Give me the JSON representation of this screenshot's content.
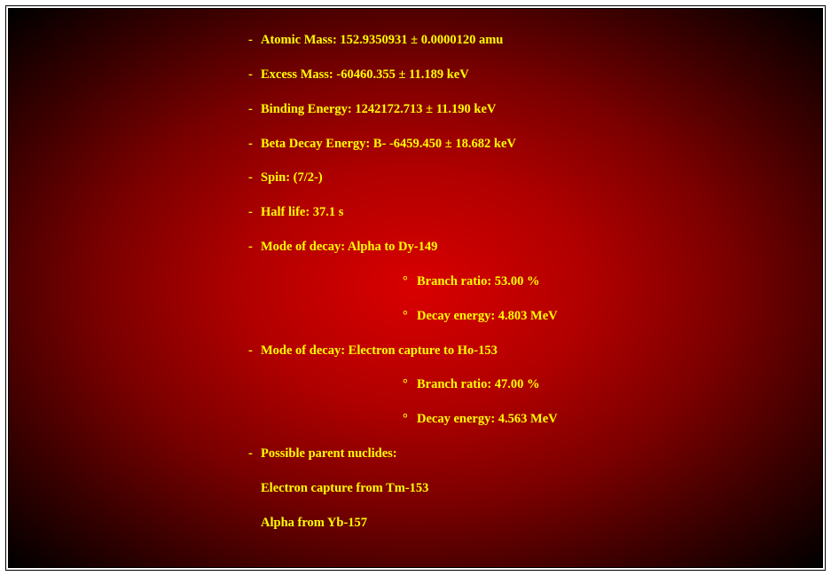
{
  "colors": {
    "text": "#ffff00",
    "bg_center": "#d90000",
    "bg_edge": "#000000",
    "border": "#000000"
  },
  "typography": {
    "font_family": "Times New Roman",
    "font_size_pt": 11,
    "font_weight": "bold"
  },
  "items": [
    {
      "label": "Atomic Mass: 152.9350931 ± 0.0000120 amu"
    },
    {
      "label": "Excess Mass: -60460.355 ± 11.189 keV"
    },
    {
      "label": "Binding Energy: 1242172.713 ± 11.190 keV"
    },
    {
      "label": "Beta Decay Energy: B- -6459.450 ± 18.682 keV"
    },
    {
      "label": "Spin: (7/2-)"
    },
    {
      "label": "Half life: 37.1 s"
    },
    {
      "label": "Mode of decay: Alpha to Dy-149",
      "sub": [
        "Branch ratio: 53.00 %",
        "Decay energy: 4.803 MeV"
      ]
    },
    {
      "label": "Mode of decay: Electron capture to Ho-153",
      "sub": [
        "Branch ratio: 47.00 %",
        "Decay energy: 4.563 MeV"
      ]
    },
    {
      "label": "Possible parent nuclides:",
      "after": [
        "Electron capture from Tm-153",
        "Alpha from Yb-157"
      ]
    }
  ]
}
